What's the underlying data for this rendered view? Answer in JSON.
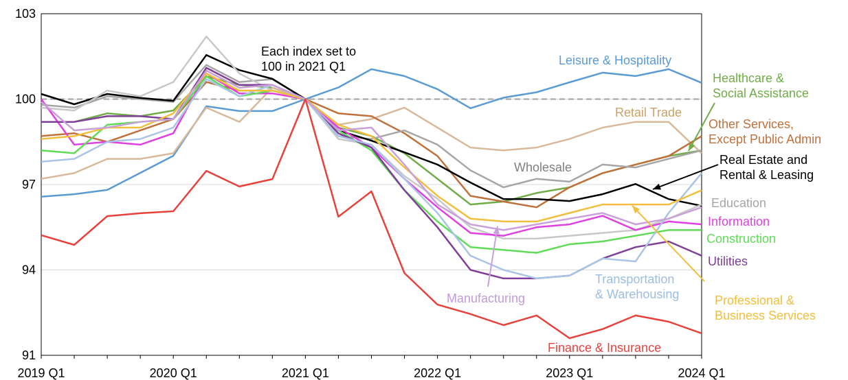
{
  "chart_data": {
    "type": "line",
    "annotation": "Each index set to\n100 in 2021 Q1",
    "categories": [
      "2019 Q1",
      null,
      null,
      null,
      "2020 Q1",
      null,
      null,
      null,
      "2021 Q1",
      null,
      null,
      null,
      "2022 Q1",
      null,
      null,
      null,
      "2023 Q1",
      null,
      null,
      null,
      "2024 Q1"
    ],
    "ylim": [
      91,
      103
    ],
    "yticks": [
      91,
      94,
      97,
      100,
      103
    ],
    "grid": true,
    "reference_line": 100,
    "series": [
      {
        "name": "Leisure & Hospitality",
        "color": "#5b9bd5",
        "values": [
          96.57,
          96.66,
          96.81,
          97.41,
          98.01,
          99.75,
          99.58,
          99.58,
          100,
          100.41,
          101.05,
          100.81,
          100.35,
          99.68,
          100.05,
          100.24,
          100.59,
          100.93,
          100.81,
          101.05,
          100.57
        ]
      },
      {
        "name": "Healthcare &\nSocial Assistance",
        "color": "#70ad47",
        "values": [
          99.2,
          99.2,
          99.5,
          99.4,
          99.6,
          100.8,
          100.5,
          100.4,
          100,
          99.0,
          98.7,
          98.1,
          97.2,
          96.3,
          96.4,
          96.7,
          96.9,
          97.4,
          97.7,
          98.0,
          98.2
        ]
      },
      {
        "name": "Retail Trade",
        "color": "#d9b99b",
        "values": [
          97.2,
          97.4,
          97.9,
          97.9,
          98.1,
          99.7,
          99.2,
          100.4,
          100,
          99.1,
          99.3,
          99.7,
          99.0,
          98.3,
          98.2,
          98.3,
          98.6,
          99.0,
          99.2,
          99.2,
          98.1
        ]
      },
      {
        "name": "Other Services,\nExcept Public Admin",
        "color": "#c0703a",
        "values": [
          98.7,
          98.8,
          98.5,
          98.9,
          99.3,
          100.6,
          100.3,
          100.3,
          100,
          99.5,
          99.4,
          98.8,
          98.0,
          96.6,
          96.4,
          96.2,
          96.9,
          97.4,
          97.7,
          98.0,
          98.7
        ]
      },
      {
        "name": "Wholesale",
        "color": "#a6a6a6",
        "values": [
          99.8,
          99.7,
          100.1,
          100.0,
          99.9,
          101.2,
          100.6,
          100.7,
          100,
          98.7,
          98.6,
          98.9,
          98.4,
          97.5,
          96.9,
          97.2,
          97.1,
          97.7,
          97.6,
          97.9,
          98.2
        ]
      },
      {
        "name": "Real Estate and\nRental & Leasing",
        "color": "#000000",
        "values": [
          100.18,
          99.82,
          100.18,
          100.04,
          99.94,
          101.55,
          101.02,
          100.71,
          100,
          98.9,
          98.54,
          98.13,
          97.7,
          97.07,
          96.49,
          96.49,
          96.42,
          96.66,
          97.02,
          96.49,
          96.25
        ]
      },
      {
        "name": "Education",
        "color": "#c8c8c8",
        "values": [
          99.7,
          99.6,
          100.3,
          100.1,
          100.6,
          102.2,
          100.9,
          100.3,
          100,
          98.6,
          98.4,
          97.3,
          96.5,
          95.5,
          95.1,
          95.1,
          95.2,
          95.3,
          95.4,
          95.8,
          96.3
        ]
      },
      {
        "name": "Information",
        "color": "#e040e0",
        "values": [
          100.0,
          98.4,
          98.5,
          98.4,
          98.8,
          100.9,
          100.2,
          100.2,
          100,
          99.0,
          98.3,
          97.2,
          96.2,
          95.3,
          95.2,
          95.5,
          95.6,
          95.9,
          95.4,
          95.7,
          95.6
        ]
      },
      {
        "name": "Construction",
        "color": "#5fdc55",
        "values": [
          98.2,
          98.1,
          99.1,
          99.2,
          99.3,
          100.8,
          100.1,
          100.3,
          100,
          98.9,
          98.2,
          96.8,
          95.7,
          94.8,
          94.7,
          94.6,
          94.9,
          95.0,
          95.2,
          95.4,
          95.4
        ]
      },
      {
        "name": "Utilities",
        "color": "#7f3f98",
        "values": [
          99.2,
          99.2,
          99.4,
          99.4,
          99.3,
          101.1,
          100.5,
          100.5,
          100,
          98.8,
          98.3,
          96.8,
          95.5,
          94.0,
          93.7,
          93.7,
          93.8,
          94.4,
          94.8,
          95.0,
          94.5
        ]
      },
      {
        "name": "Transportation\n& Warehousing",
        "color": "#a9c4e6",
        "values": [
          97.8,
          97.9,
          98.5,
          98.6,
          99.0,
          100.7,
          100.1,
          100.5,
          100,
          98.7,
          98.4,
          97.2,
          96.0,
          94.5,
          94.0,
          93.7,
          93.8,
          94.4,
          94.3,
          96.0,
          97.4
        ]
      },
      {
        "name": "Professional &\nBusiness Services",
        "color": "#f2bf3c",
        "values": [
          98.6,
          98.7,
          99.0,
          99.0,
          99.5,
          100.9,
          100.3,
          100.3,
          100,
          99.1,
          98.7,
          97.6,
          96.6,
          95.8,
          95.7,
          95.7,
          96.0,
          96.3,
          96.3,
          96.3,
          96.8
        ]
      },
      {
        "name": "Manufacturing",
        "color": "#c9a0dc",
        "values": [
          99.9,
          98.9,
          99.0,
          99.2,
          99.3,
          101.0,
          100.4,
          100.5,
          100,
          98.9,
          99.0,
          97.7,
          96.3,
          95.6,
          95.4,
          95.6,
          95.8,
          96.0,
          95.6,
          95.8,
          96.2
        ]
      },
      {
        "name": "Finance & Insurance",
        "color": "#e8413c",
        "values": [
          95.22,
          94.88,
          95.89,
          95.99,
          96.06,
          97.48,
          96.93,
          97.19,
          100,
          95.87,
          96.76,
          93.89,
          92.78,
          92.45,
          92.06,
          92.4,
          91.6,
          91.92,
          92.4,
          92.18,
          91.77
        ]
      }
    ]
  }
}
